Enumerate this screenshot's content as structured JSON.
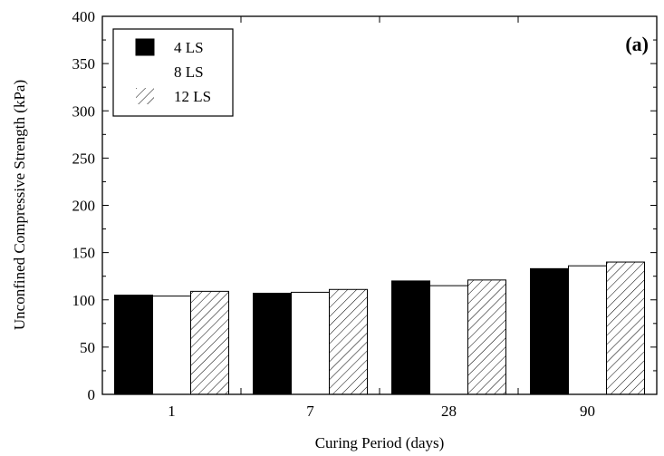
{
  "chart_data": {
    "type": "bar",
    "panel_label": "(a)",
    "xlabel": "Curing Period (days)",
    "ylabel": "Unconfined Compressive Strength (kPa)",
    "categories": [
      "1",
      "7",
      "28",
      "90"
    ],
    "ylim": [
      0,
      400
    ],
    "yticks": [
      0,
      50,
      100,
      150,
      200,
      250,
      300,
      350,
      400
    ],
    "legend_position": "top-left",
    "grid": false,
    "series": [
      {
        "name": "4 LS",
        "style": "solid-black",
        "values": [
          105,
          107,
          120,
          133
        ]
      },
      {
        "name": "8 LS",
        "style": "white",
        "values": [
          104,
          108,
          115,
          136
        ]
      },
      {
        "name": "12 LS",
        "style": "hatched",
        "values": [
          109,
          111,
          121,
          140
        ]
      }
    ]
  }
}
